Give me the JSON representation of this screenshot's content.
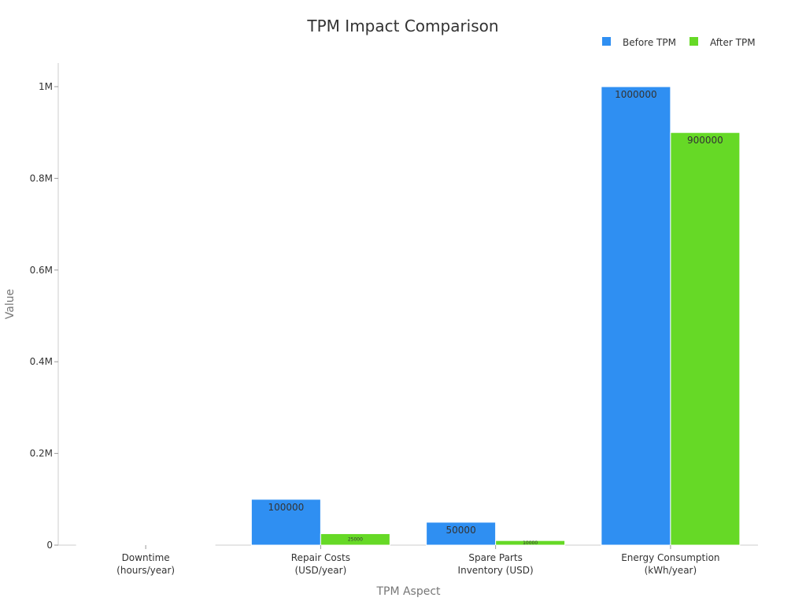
{
  "chart_data": {
    "type": "bar",
    "title": "TPM Impact Comparison",
    "xlabel": "TPM Aspect",
    "ylabel": "Value",
    "categories": [
      [
        "Downtime",
        "(hours/year)"
      ],
      [
        "Repair Costs",
        "(USD/year)"
      ],
      [
        "Spare Parts",
        "Inventory (USD)"
      ],
      [
        "Energy Consumption",
        "(kWh/year)"
      ]
    ],
    "series": [
      {
        "name": "Before TPM",
        "color": "#2f8ff2",
        "values": [
          200,
          100000,
          50000,
          1000000
        ],
        "labels": [
          "",
          "100000",
          "50000",
          "1000000"
        ]
      },
      {
        "name": "After TPM",
        "color": "#66d926",
        "values": [
          50,
          25000,
          10000,
          900000
        ],
        "labels": [
          "",
          "25000",
          "10000",
          "900000"
        ]
      }
    ],
    "ylim": [
      0,
      1050000
    ],
    "yticks": [
      0,
      200000,
      400000,
      600000,
      800000,
      1000000
    ],
    "ytick_labels": [
      "0",
      "0.2M",
      "0.4M",
      "0.6M",
      "0.8M",
      "1M"
    ],
    "legend_position": "top-right",
    "grid": false
  }
}
